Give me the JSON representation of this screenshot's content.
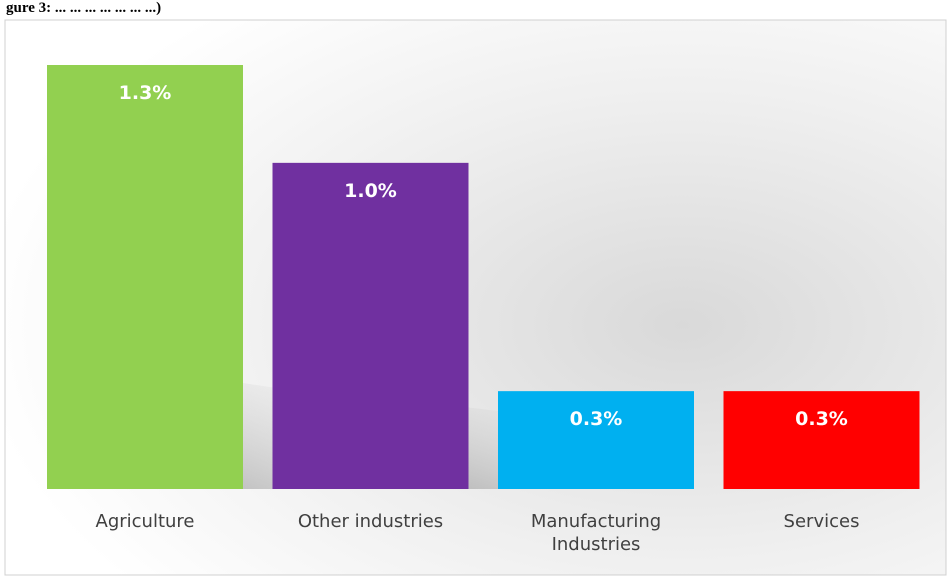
{
  "header_fragment": "gure 3: ... ... ... ... ... ... ...)",
  "chart_data": {
    "type": "bar",
    "categories": [
      "Agriculture",
      "Other industries",
      "Manufacturing Industries",
      "Services"
    ],
    "category_lines": [
      [
        "Agriculture"
      ],
      [
        "Other industries"
      ],
      [
        "Manufacturing",
        "Industries"
      ],
      [
        "Services"
      ]
    ],
    "values": [
      1.3,
      1.0,
      0.3,
      0.3
    ],
    "value_labels": [
      "1.3%",
      "1.0%",
      "0.3%",
      "0.3%"
    ],
    "colors": [
      "#92d050",
      "#7030a0",
      "#00b0f0",
      "#ff0000"
    ],
    "ylim": [
      0,
      1.3
    ],
    "title": "",
    "xlabel": "",
    "ylabel": "",
    "grid": false,
    "legend": "none"
  }
}
